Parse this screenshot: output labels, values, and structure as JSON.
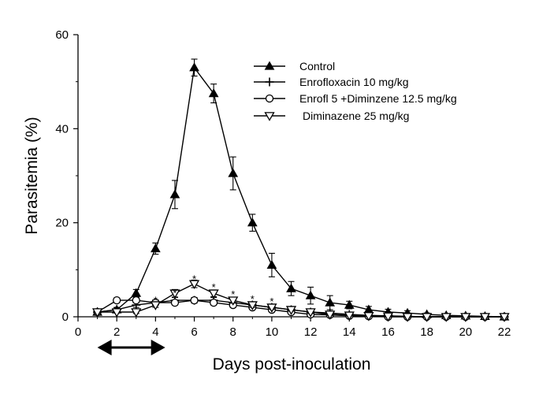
{
  "chart_data": {
    "type": "line",
    "title": "",
    "xlabel": "Days post-inoculation",
    "ylabel": "Parasitemia (%)",
    "xlim": [
      0,
      22
    ],
    "ylim": [
      0,
      60
    ],
    "xticks": [
      0,
      2,
      4,
      6,
      8,
      10,
      12,
      14,
      16,
      18,
      20,
      22
    ],
    "yticks": [
      0,
      20,
      40,
      60
    ],
    "grid": false,
    "legend_position": "top-right",
    "treatment_period": [
      1,
      4.5
    ],
    "series": [
      {
        "name": "Control",
        "marker": "filled-triangle-up",
        "x": [
          1,
          2,
          3,
          4,
          5,
          6,
          7,
          8,
          9,
          10,
          11,
          12,
          13,
          14,
          15,
          16,
          17,
          18,
          19,
          20,
          21,
          22
        ],
        "y": [
          1,
          1.5,
          5,
          14.5,
          26,
          53,
          47.5,
          30.5,
          20,
          11,
          6,
          4.5,
          3,
          2.5,
          1.5,
          1,
          0.8,
          0.5,
          0.3,
          0.2,
          0.1,
          0
        ],
        "err": [
          0.3,
          0.5,
          0.8,
          1.2,
          3,
          1.8,
          2,
          3.5,
          1.8,
          2.5,
          1.5,
          1.8,
          1.5,
          0.8,
          0.7,
          0.6,
          0.5,
          0.3,
          0.3,
          0.2,
          0.1,
          0
        ]
      },
      {
        "name": "Enrofloxacin 10 mg/kg",
        "marker": "plus",
        "x": [
          1,
          2,
          3,
          4,
          5,
          6,
          7,
          8,
          9,
          10,
          11,
          12,
          13,
          14,
          15,
          16,
          17,
          18,
          19,
          20,
          21,
          22
        ],
        "y": [
          1,
          1.5,
          2.5,
          3,
          3.5,
          3.5,
          3.5,
          3,
          2.5,
          2,
          1.5,
          1,
          0.8,
          0.5,
          0.3,
          0.2,
          0.1,
          0,
          0,
          0,
          0,
          0
        ],
        "err": [
          0.3,
          0.4,
          0.5,
          0.6,
          0.6,
          0.6,
          0.6,
          0.6,
          0.5,
          0.5,
          0.4,
          0.3,
          0.3,
          0.2,
          0.2,
          0.1,
          0.1,
          0,
          0,
          0,
          0,
          0
        ]
      },
      {
        "name": "Enrofl 5 +Diminzene 12.5 mg/kg",
        "marker": "open-circle",
        "x": [
          1,
          2,
          3,
          4,
          5,
          6,
          7,
          8,
          9,
          10,
          11,
          12,
          13,
          14,
          15,
          16,
          17,
          18,
          19,
          20,
          21,
          22
        ],
        "y": [
          1,
          3.5,
          3.5,
          3,
          3,
          3.5,
          3,
          2.5,
          2,
          1.5,
          1,
          0.5,
          0.4,
          0.2,
          0.1,
          0,
          0,
          0,
          0,
          0,
          0,
          0
        ],
        "err": [
          0.3,
          0.5,
          0.5,
          0.5,
          0.5,
          0.5,
          0.5,
          0.5,
          0.4,
          0.4,
          0.3,
          0.2,
          0.2,
          0.1,
          0.1,
          0,
          0,
          0,
          0,
          0,
          0,
          0
        ]
      },
      {
        "name": "Diminazene 25 mg/kg",
        "marker": "open-triangle-down",
        "x": [
          1,
          2,
          3,
          4,
          5,
          6,
          7,
          8,
          9,
          10,
          11,
          12,
          13,
          14,
          15,
          16,
          17,
          18,
          19,
          20,
          21,
          22
        ],
        "y": [
          1,
          1,
          1,
          2.5,
          5,
          7,
          5,
          3.5,
          2.5,
          2,
          1.5,
          1,
          0.5,
          0.3,
          0.2,
          0.1,
          0,
          0,
          0,
          0,
          0,
          0
        ],
        "err": [
          0.2,
          0.2,
          0.3,
          0.5,
          0.8,
          0.8,
          0.7,
          0.6,
          0.5,
          0.4,
          0.3,
          0.3,
          0.2,
          0.1,
          0.1,
          0.1,
          0,
          0,
          0,
          0,
          0,
          0
        ]
      }
    ],
    "annotations": [
      {
        "text": "*",
        "x": 4,
        "y": 3.8
      },
      {
        "text": "*",
        "x": 5,
        "y": 5.3
      },
      {
        "text": "*",
        "x": 6,
        "y": 8.3
      },
      {
        "text": "*",
        "x": 7,
        "y": 6.5
      },
      {
        "text": "*",
        "x": 8,
        "y": 5.0
      },
      {
        "text": "*",
        "x": 9,
        "y": 4.0
      },
      {
        "text": "*",
        "x": 10,
        "y": 3.5
      }
    ]
  },
  "colors": {
    "axis": "#000000",
    "line": "#000000",
    "background": "#ffffff"
  }
}
